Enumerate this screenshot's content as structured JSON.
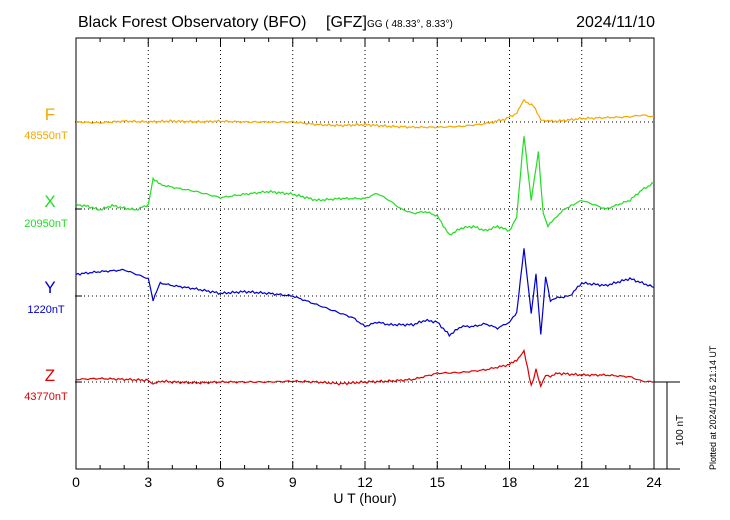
{
  "chart_data": {
    "type": "line",
    "title": "Black Forest Observatory (BFO)",
    "institute": "[GFZ]",
    "coords": "GG ( 48.33°,   8.33°)",
    "date": "2024/11/10",
    "xlabel": "U T (hour)",
    "xlim": [
      0,
      24
    ],
    "xticks": [
      0,
      3,
      6,
      9,
      12,
      15,
      18,
      21,
      24
    ],
    "xtick_labels": [
      "0",
      "3",
      "6",
      "9",
      "12",
      "15",
      "18",
      "21",
      "24"
    ],
    "scale_label": "100 nT",
    "scale_nT": 100,
    "plotted_note": "Plotted at 2024/11/16 21:14 UT",
    "series": [
      {
        "name": "F",
        "baseline_label": "48550nT",
        "baseline_nT": 48550,
        "color": "#f5a800",
        "hours": [
          0,
          1,
          2,
          3,
          4,
          5,
          6,
          7,
          8,
          9,
          10,
          11,
          12,
          13,
          14,
          15,
          16,
          17,
          17.8,
          18.3,
          18.6,
          19.0,
          19.3,
          19.6,
          20,
          21,
          22,
          23,
          23.5,
          24
        ],
        "offset_nT": [
          0,
          -1,
          1,
          0,
          1,
          0,
          1,
          0,
          0,
          0,
          -3,
          -4,
          -3,
          -5,
          -6,
          -6,
          -5,
          -2,
          3,
          10,
          25,
          18,
          3,
          1,
          1,
          4,
          5,
          6,
          8,
          6
        ]
      },
      {
        "name": "X",
        "baseline_label": "20950nT",
        "baseline_nT": 20950,
        "color": "#22dd22",
        "hours": [
          0,
          0.5,
          1,
          1.5,
          2,
          2.5,
          3,
          3.2,
          3.5,
          4,
          5,
          6,
          7,
          8,
          9,
          10,
          11,
          12,
          12.5,
          13,
          13.5,
          14,
          14.5,
          15,
          15.5,
          16,
          16.5,
          17,
          17.5,
          18,
          18.3,
          18.6,
          18.9,
          19.2,
          19.4,
          19.6,
          19.9,
          20.3,
          21,
          22,
          23,
          23.5,
          24
        ],
        "offset_nT": [
          5,
          3,
          -1,
          4,
          1,
          -1,
          5,
          35,
          28,
          25,
          20,
          13,
          17,
          20,
          17,
          10,
          12,
          12,
          18,
          10,
          0,
          -5,
          -3,
          -8,
          -30,
          -22,
          -20,
          -25,
          -20,
          -25,
          -10,
          85,
          10,
          65,
          -5,
          -20,
          -10,
          0,
          10,
          0,
          10,
          22,
          30
        ]
      },
      {
        "name": "Y",
        "baseline_label": "1220nT",
        "baseline_nT": 1220,
        "color": "#0000cc",
        "hours": [
          0,
          1,
          2,
          3,
          3.2,
          3.5,
          4,
          5,
          6,
          7,
          8,
          9,
          10,
          11,
          11.5,
          12,
          12.5,
          13,
          14,
          14.5,
          15,
          15.5,
          16,
          16.5,
          17,
          17.5,
          18,
          18.3,
          18.6,
          18.9,
          19.1,
          19.3,
          19.5,
          19.7,
          20,
          20.5,
          21,
          22,
          23,
          23.5,
          24
        ],
        "offset_nT": [
          25,
          28,
          30,
          20,
          -5,
          15,
          12,
          8,
          3,
          5,
          3,
          0,
          -10,
          -20,
          -25,
          -35,
          -30,
          -33,
          -33,
          -28,
          -30,
          -45,
          -35,
          -35,
          -32,
          -37,
          -30,
          -20,
          55,
          -20,
          25,
          -45,
          22,
          -5,
          -2,
          0,
          15,
          12,
          20,
          15,
          10
        ]
      },
      {
        "name": "Z",
        "baseline_label": "43770nT",
        "baseline_nT": 43770,
        "color": "#dd0000",
        "hours": [
          0,
          1,
          2,
          3,
          3.2,
          3.5,
          4,
          5,
          6,
          7,
          8,
          9,
          10,
          11,
          12,
          13,
          14,
          15,
          16,
          17,
          18,
          18.3,
          18.6,
          18.9,
          19.1,
          19.3,
          19.5,
          19.7,
          20,
          21,
          22,
          23,
          23.5,
          24
        ],
        "offset_nT": [
          3,
          4,
          3,
          2,
          -3,
          1,
          0,
          -1,
          0,
          0,
          0,
          1,
          0,
          -2,
          0,
          1,
          3,
          10,
          11,
          14,
          20,
          25,
          36,
          -5,
          14,
          -5,
          8,
          6,
          10,
          8,
          8,
          6,
          1,
          0
        ]
      }
    ]
  }
}
